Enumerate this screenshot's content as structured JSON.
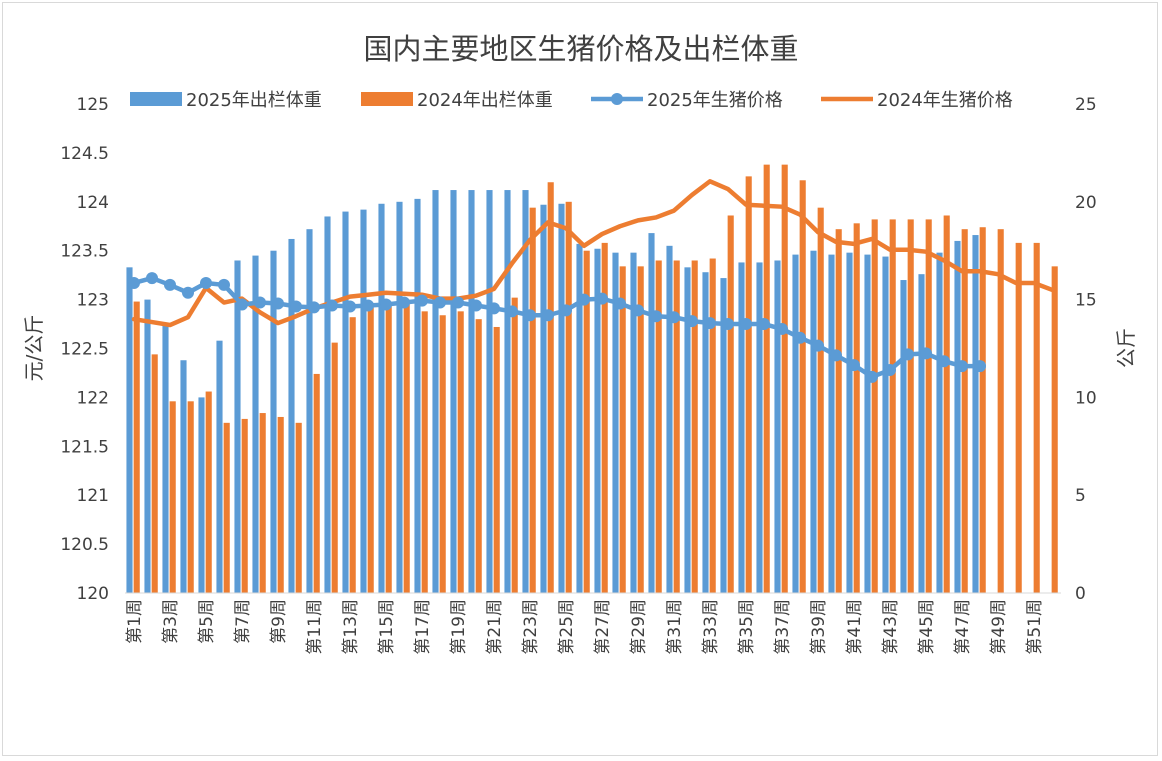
{
  "chart_data": {
    "type": "bar",
    "title": "国内主要地区生猪价格及出栏体重",
    "y_left_label": "元/公斤",
    "y_right_label": "公斤",
    "y_left_lim": [
      120,
      125
    ],
    "y_left_ticks": [
      "120",
      "120.5",
      "121",
      "121.5",
      "122",
      "122.5",
      "123",
      "123.5",
      "124",
      "124.5",
      "125"
    ],
    "y_right_lim": [
      0,
      25
    ],
    "y_right_ticks": [
      "0",
      "5",
      "10",
      "15",
      "20",
      "25"
    ],
    "x_tick_labels": [
      "第1周",
      "第3周",
      "第5周",
      "第7周",
      "第9周",
      "第11周",
      "第13周",
      "第15周",
      "第17周",
      "第19周",
      "第21周",
      "第23周",
      "第25周",
      "第27周",
      "第29周",
      "第31周",
      "第33周",
      "第35周",
      "第37周",
      "第39周",
      "第41周",
      "第43周",
      "第45周",
      "第47周",
      "第49周",
      "第51周"
    ],
    "categories": [
      "第1周",
      "第2周",
      "第3周",
      "第4周",
      "第5周",
      "第6周",
      "第7周",
      "第8周",
      "第9周",
      "第10周",
      "第11周",
      "第12周",
      "第13周",
      "第14周",
      "第15周",
      "第16周",
      "第17周",
      "第18周",
      "第19周",
      "第20周",
      "第21周",
      "第22周",
      "第23周",
      "第24周",
      "第25周",
      "第26周",
      "第27周",
      "第28周",
      "第29周",
      "第30周",
      "第31周",
      "第32周",
      "第33周",
      "第34周",
      "第35周",
      "第36周",
      "第37周",
      "第38周",
      "第39周",
      "第40周",
      "第41周",
      "第42周",
      "第43周",
      "第44周",
      "第45周",
      "第46周",
      "第47周",
      "第48周",
      "第49周",
      "第50周",
      "第51周",
      "第52周"
    ],
    "series": [
      {
        "name": "2025年出栏体重",
        "type": "bar",
        "axis": "left",
        "color": "#5b9bd5",
        "values": [
          123.33,
          123.0,
          122.75,
          122.38,
          122.0,
          122.58,
          123.4,
          123.45,
          123.5,
          123.62,
          123.72,
          123.85,
          123.9,
          123.92,
          123.98,
          124.0,
          124.03,
          124.12,
          124.12,
          124.12,
          124.12,
          124.12,
          124.12,
          123.97,
          123.98,
          123.57,
          123.52,
          123.48,
          123.48,
          123.68,
          123.55,
          123.33,
          123.28,
          123.22,
          123.38,
          123.38,
          123.4,
          123.46,
          123.5,
          123.46,
          123.48,
          123.46,
          123.44,
          123.2,
          123.26,
          123.48,
          123.6,
          123.66,
          null,
          null,
          null,
          null
        ]
      },
      {
        "name": "2024年出栏体重",
        "type": "bar",
        "axis": "left",
        "color": "#ed7d31",
        "values": [
          122.98,
          122.44,
          121.96,
          121.96,
          122.06,
          121.74,
          121.78,
          121.84,
          121.8,
          121.74,
          122.24,
          122.56,
          122.82,
          122.92,
          122.96,
          122.98,
          122.88,
          122.84,
          122.88,
          122.8,
          122.72,
          123.02,
          123.94,
          124.2,
          124.0,
          123.5,
          123.58,
          123.34,
          123.34,
          123.4,
          123.4,
          123.4,
          123.42,
          123.86,
          124.26,
          124.38,
          124.38,
          124.22,
          123.94,
          123.72,
          123.78,
          123.82,
          123.82,
          123.82,
          123.82,
          123.86,
          123.72,
          123.74,
          123.72,
          123.58,
          123.58,
          123.34
        ]
      },
      {
        "name": "2025年生猪价格",
        "type": "line",
        "axis": "right",
        "markers": true,
        "color": "#5b9bd5",
        "values": [
          15.85,
          16.1,
          15.75,
          15.35,
          15.85,
          15.75,
          14.75,
          14.85,
          14.8,
          14.65,
          14.6,
          14.7,
          14.65,
          14.7,
          14.75,
          14.85,
          14.95,
          14.85,
          14.85,
          14.7,
          14.55,
          14.4,
          14.2,
          14.2,
          14.45,
          15.0,
          15.05,
          14.8,
          14.45,
          14.15,
          14.1,
          13.9,
          13.8,
          13.75,
          13.75,
          13.75,
          13.5,
          13.05,
          12.65,
          12.15,
          11.65,
          11.05,
          11.4,
          12.2,
          12.25,
          11.85,
          11.6,
          11.6,
          null,
          null,
          null,
          null
        ]
      },
      {
        "name": "2024年生猪价格",
        "type": "line",
        "axis": "right",
        "markers": false,
        "color": "#ed7d31",
        "values": [
          14.0,
          13.85,
          13.7,
          14.1,
          15.6,
          14.85,
          15.05,
          14.35,
          13.8,
          14.15,
          14.55,
          14.85,
          15.15,
          15.25,
          15.35,
          15.3,
          15.25,
          15.05,
          15.05,
          15.2,
          15.55,
          16.85,
          18.05,
          18.95,
          18.65,
          17.75,
          18.35,
          18.75,
          19.05,
          19.2,
          19.55,
          20.35,
          21.05,
          20.65,
          19.85,
          19.8,
          19.75,
          19.35,
          18.45,
          17.95,
          17.85,
          18.1,
          17.55,
          17.55,
          17.45,
          17.0,
          16.45,
          16.45,
          16.3,
          15.85,
          15.85,
          15.5
        ]
      }
    ],
    "legend_position": "top",
    "grid": false
  }
}
